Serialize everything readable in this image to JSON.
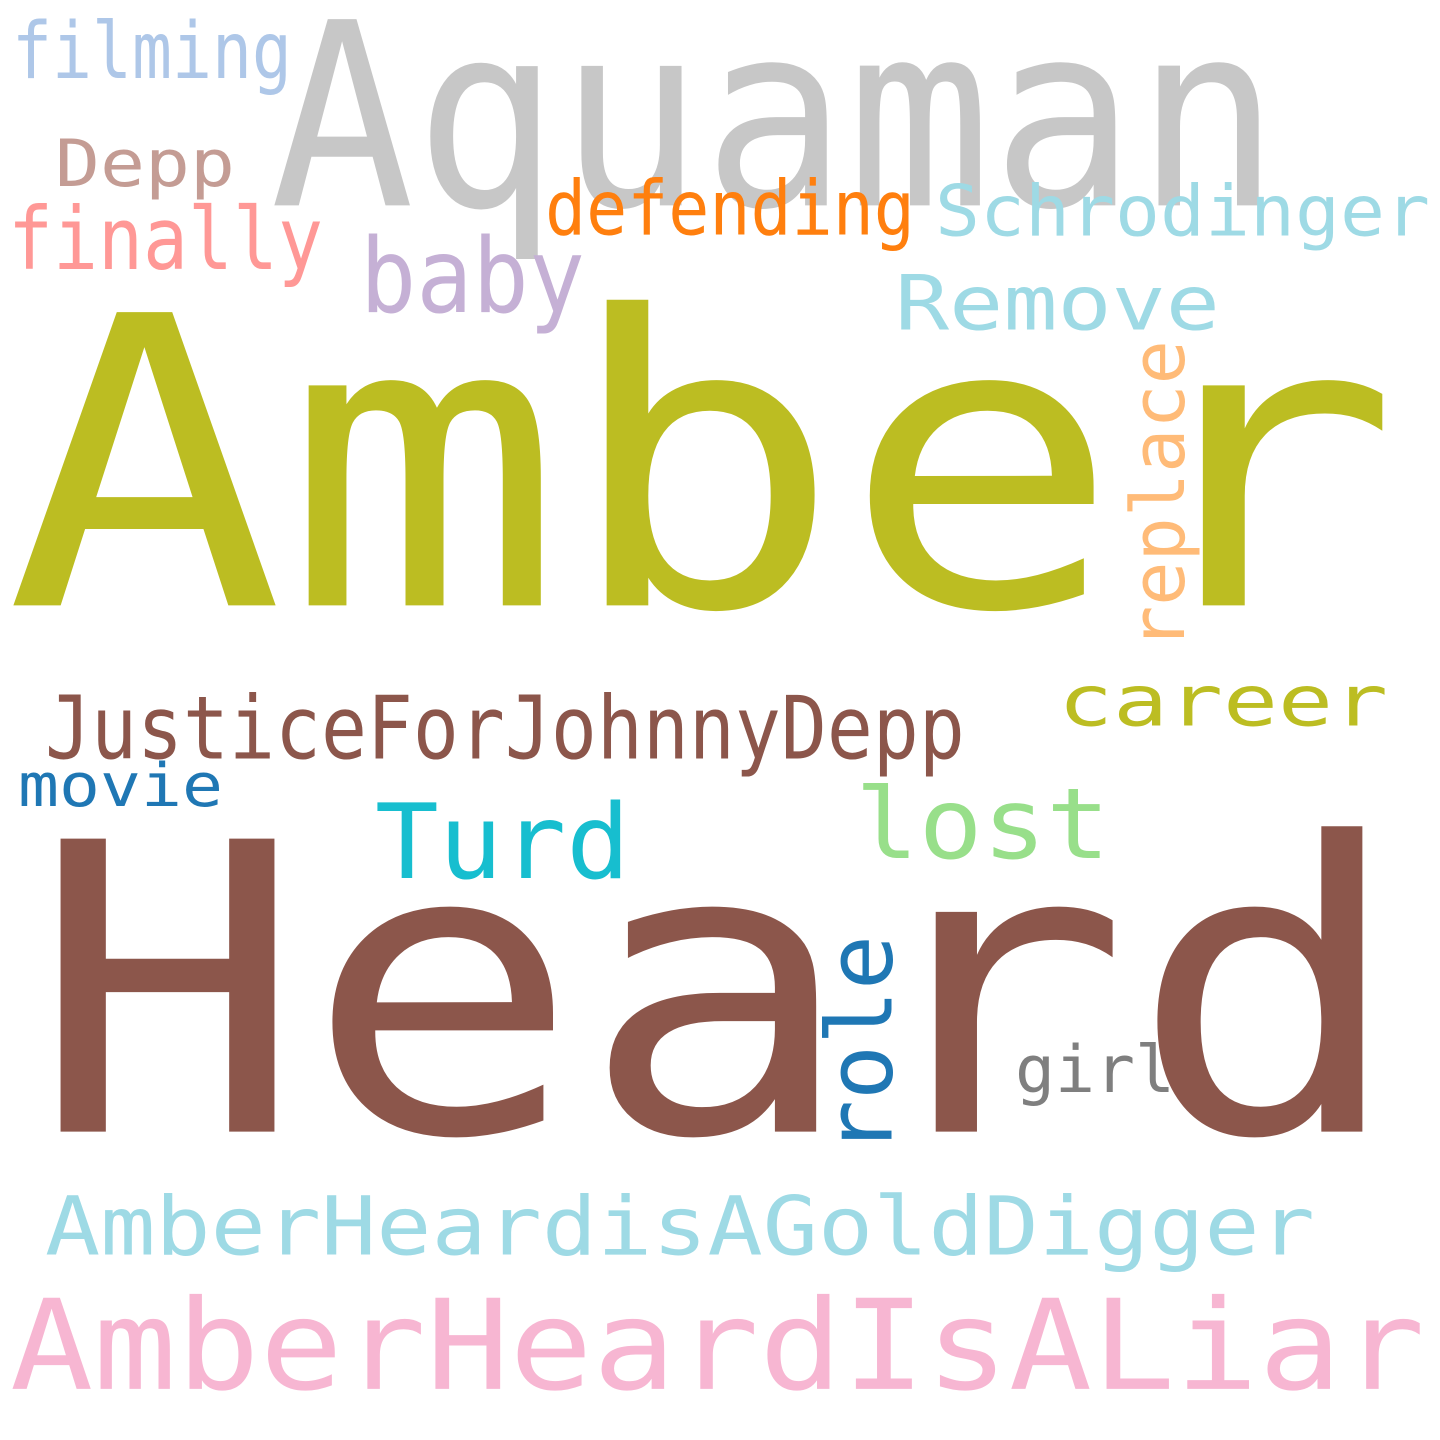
{
  "words": [
    {
      "id": "aquaman",
      "text": "Aquaman",
      "color": "#c7c7c7"
    },
    {
      "id": "amber",
      "text": "Amber",
      "color": "#bcbd22"
    },
    {
      "id": "heard",
      "text": "Heard",
      "color": "#8c564b"
    },
    {
      "id": "filming",
      "text": "filming",
      "color": "#aec7e8"
    },
    {
      "id": "depp",
      "text": "Depp",
      "color": "#c49c94"
    },
    {
      "id": "defending",
      "text": "defending",
      "color": "#ff7f0e"
    },
    {
      "id": "schrodinger",
      "text": "Schrodinger",
      "color": "#9edae5"
    },
    {
      "id": "finally",
      "text": "finally",
      "color": "#ff9896"
    },
    {
      "id": "baby",
      "text": "baby",
      "color": "#c5b0d5"
    },
    {
      "id": "remove",
      "text": "Remove",
      "color": "#9edae5"
    },
    {
      "id": "replace",
      "text": "replace",
      "color": "#ffbb78"
    },
    {
      "id": "career",
      "text": "career",
      "color": "#bcbd22"
    },
    {
      "id": "justice",
      "text": "JusticeForJohnnyDepp",
      "color": "#8c564b"
    },
    {
      "id": "movie",
      "text": "movie",
      "color": "#1f77b4"
    },
    {
      "id": "turd",
      "text": "Turd",
      "color": "#17becf"
    },
    {
      "id": "lost",
      "text": "lost",
      "color": "#98df8a"
    },
    {
      "id": "role",
      "text": "role",
      "color": "#1f77b4"
    },
    {
      "id": "girl",
      "text": "girl",
      "color": "#7f7f7f"
    },
    {
      "id": "golddigger",
      "text": "AmberHeardisAGoldDigger",
      "color": "#9edae5"
    },
    {
      "id": "liar",
      "text": "AmberHeardIsALiar",
      "color": "#f7b6d2"
    }
  ]
}
